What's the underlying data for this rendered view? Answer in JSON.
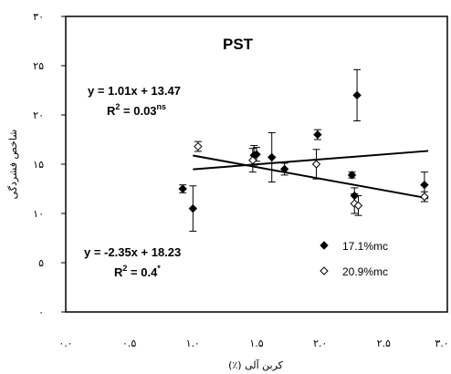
{
  "chart_data": {
    "type": "scatter",
    "title": "PST",
    "xlabel": "کربن آلی (٪)",
    "ylabel": "شاخص فشردگی",
    "xlim": [
      0,
      3
    ],
    "ylim": [
      0,
      30
    ],
    "x_tick_labels": [
      "۰.۰",
      "۰.۵",
      "۱.۰",
      "۱.۵",
      "۲.۰",
      "۲.۵",
      "۳.۰"
    ],
    "y_tick_labels": [
      "۰",
      "۵",
      "۱۰",
      "۱۵",
      "۲۰",
      "۲۵",
      "۳۰"
    ],
    "grid": false,
    "legend_position": "bottom-right",
    "series": [
      {
        "name": "17.1%mc",
        "marker": "filled-diamond",
        "color": "#000000",
        "points": [
          {
            "x": 0.92,
            "y": 12.5,
            "err": 0.4
          },
          {
            "x": 1.0,
            "y": 10.5,
            "err": 2.3
          },
          {
            "x": 1.48,
            "y": 15.9,
            "err": 1.0
          },
          {
            "x": 1.5,
            "y": 16.0,
            "err": 0.7
          },
          {
            "x": 1.62,
            "y": 15.7,
            "err": 2.5
          },
          {
            "x": 1.72,
            "y": 14.5,
            "err": 0.6
          },
          {
            "x": 1.98,
            "y": 18.0,
            "err": 0.5
          },
          {
            "x": 2.25,
            "y": 13.9,
            "err": 0.3
          },
          {
            "x": 2.27,
            "y": 11.8,
            "err": 0.8
          },
          {
            "x": 2.29,
            "y": 22.0,
            "err": 2.6
          },
          {
            "x": 2.82,
            "y": 12.9,
            "err": 1.3
          }
        ]
      },
      {
        "name": "20.9%mc",
        "marker": "open-diamond",
        "color": "#000000",
        "points": [
          {
            "x": 1.04,
            "y": 16.8,
            "err": 0.5
          },
          {
            "x": 1.47,
            "y": 15.4,
            "err": 1.2
          },
          {
            "x": 1.97,
            "y": 15.0,
            "err": 1.5
          },
          {
            "x": 2.27,
            "y": 11.0,
            "err": 1.0
          },
          {
            "x": 2.3,
            "y": 10.8,
            "err": 1.0
          },
          {
            "x": 2.82,
            "y": 11.7,
            "err": 0.5
          }
        ]
      }
    ],
    "trendlines": [
      {
        "equation": "y = 1.01x + 13.47",
        "slope": 1.01,
        "intercept": 13.47,
        "x_range": [
          1.0,
          2.85
        ]
      },
      {
        "equation": "y = -2.35x + 18.23",
        "slope": -2.35,
        "intercept": 18.23,
        "x_range": [
          1.0,
          2.85
        ]
      }
    ],
    "annotations": {
      "eq1_line": "y = 1.01x + 13.47",
      "eq1_r2_prefix": "R",
      "eq1_r2_exp": "2",
      "eq1_r2_value": " = 0.03",
      "eq1_r2_sup": "ns",
      "eq2_line": "y = -2.35x + 18.23",
      "eq2_r2_prefix": "R",
      "eq2_r2_exp": "2",
      "eq2_r2_value": " = 0.4",
      "eq2_r2_sup": "*"
    }
  }
}
